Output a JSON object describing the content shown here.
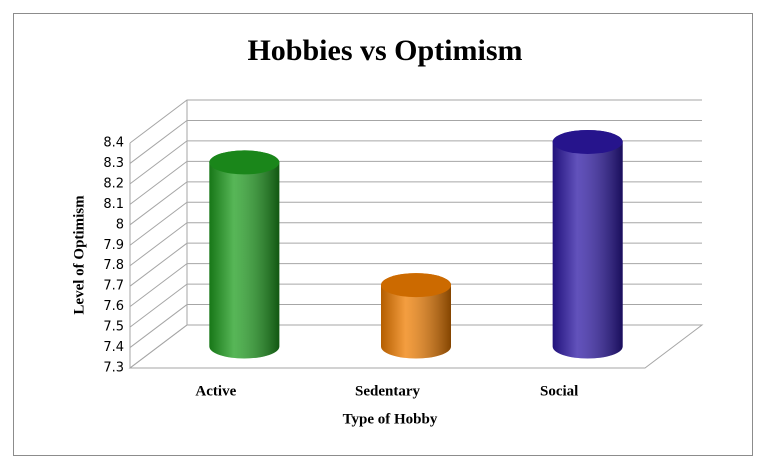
{
  "chart_data": {
    "type": "bar",
    "title": "Hobbies vs Optimism",
    "x_label": "Type of Hobby",
    "y_label": "Level of Optimism",
    "categories": [
      "Active",
      "Sedentary",
      "Social"
    ],
    "values": [
      8.2,
      7.6,
      8.3
    ],
    "colors": [
      "#1f9e1f",
      "#f07d00",
      "#2d18a5"
    ],
    "ylim": [
      7.3,
      8.4
    ],
    "yticks": [
      7.3,
      7.4,
      7.5,
      7.6,
      7.7,
      7.8,
      7.9,
      8,
      8.1,
      8.2,
      8.3,
      8.4
    ],
    "grid": true
  }
}
